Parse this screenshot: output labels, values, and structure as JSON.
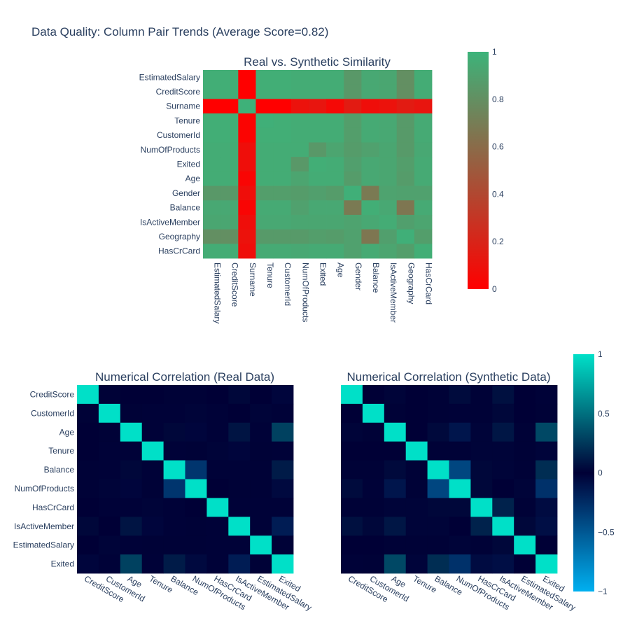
{
  "title": "Data Quality: Column Pair Trends (Average Score=0.82)",
  "chart_data": [
    {
      "type": "heatmap",
      "title": "Real vs. Synthetic Similarity",
      "x_labels": [
        "EstimatedSalary",
        "CreditScore",
        "Surname",
        "Tenure",
        "CustomerId",
        "NumOfProducts",
        "Exited",
        "Age",
        "Gender",
        "Balance",
        "IsActiveMember",
        "Geography",
        "HasCrCard"
      ],
      "y_labels": [
        "EstimatedSalary",
        "CreditScore",
        "Surname",
        "Tenure",
        "CustomerId",
        "NumOfProducts",
        "Exited",
        "Age",
        "Gender",
        "Balance",
        "IsActiveMember",
        "Geography",
        "HasCrCard"
      ],
      "z": [
        [
          0.97,
          0.97,
          0.0,
          0.97,
          0.97,
          0.96,
          0.96,
          0.96,
          0.85,
          0.94,
          0.93,
          0.8,
          0.96
        ],
        [
          0.97,
          0.97,
          0.0,
          0.97,
          0.97,
          0.96,
          0.96,
          0.96,
          0.85,
          0.94,
          0.93,
          0.8,
          0.96
        ],
        [
          0.0,
          0.0,
          0.99,
          0.0,
          0.0,
          0.1,
          0.12,
          0.05,
          0.15,
          0.08,
          0.1,
          0.15,
          0.12
        ],
        [
          0.97,
          0.97,
          0.02,
          0.98,
          0.97,
          0.96,
          0.96,
          0.96,
          0.88,
          0.95,
          0.94,
          0.86,
          0.95
        ],
        [
          0.97,
          0.97,
          0.02,
          0.97,
          0.97,
          0.96,
          0.96,
          0.96,
          0.88,
          0.95,
          0.94,
          0.86,
          0.95
        ],
        [
          0.96,
          0.96,
          0.08,
          0.96,
          0.96,
          0.96,
          0.85,
          0.92,
          0.87,
          0.9,
          0.93,
          0.86,
          0.94
        ],
        [
          0.96,
          0.96,
          0.08,
          0.96,
          0.96,
          0.85,
          0.97,
          0.96,
          0.89,
          0.94,
          0.93,
          0.88,
          0.95
        ],
        [
          0.96,
          0.96,
          0.03,
          0.96,
          0.96,
          0.92,
          0.96,
          0.96,
          0.87,
          0.94,
          0.93,
          0.87,
          0.95
        ],
        [
          0.85,
          0.85,
          0.08,
          0.88,
          0.88,
          0.87,
          0.89,
          0.87,
          0.98,
          0.68,
          0.91,
          0.9,
          0.9
        ],
        [
          0.94,
          0.94,
          0.03,
          0.95,
          0.95,
          0.9,
          0.94,
          0.94,
          0.68,
          0.97,
          0.94,
          0.66,
          0.95
        ],
        [
          0.93,
          0.93,
          0.08,
          0.94,
          0.94,
          0.93,
          0.93,
          0.93,
          0.91,
          0.94,
          0.96,
          0.89,
          0.92
        ],
        [
          0.8,
          0.8,
          0.1,
          0.86,
          0.86,
          0.86,
          0.88,
          0.87,
          0.9,
          0.66,
          0.89,
          0.98,
          0.88
        ],
        [
          0.96,
          0.96,
          0.08,
          0.95,
          0.95,
          0.94,
          0.95,
          0.95,
          0.9,
          0.95,
          0.92,
          0.88,
          0.97
        ]
      ],
      "zlim": [
        0,
        1
      ],
      "colorscale": [
        "#ff0000",
        "#3cb37a"
      ],
      "colorbar_ticks": [
        0,
        0.2,
        0.4,
        0.6,
        0.8,
        1
      ]
    },
    {
      "type": "heatmap",
      "title": "Numerical Correlation (Real Data)",
      "x_labels": [
        "CreditScore",
        "CustomerId",
        "Age",
        "Tenure",
        "Balance",
        "NumOfProducts",
        "HasCrCard",
        "IsActiveMember",
        "EstimatedSalary",
        "Exited"
      ],
      "y_labels": [
        "CreditScore",
        "CustomerId",
        "Age",
        "Tenure",
        "Balance",
        "NumOfProducts",
        "HasCrCard",
        "IsActiveMember",
        "EstimatedSalary",
        "Exited"
      ],
      "z": [
        [
          1.0,
          0.01,
          0.0,
          0.0,
          0.01,
          0.01,
          0.0,
          0.03,
          0.0,
          -0.03
        ],
        [
          0.01,
          1.0,
          0.01,
          -0.01,
          -0.01,
          0.02,
          -0.01,
          0.0,
          0.02,
          -0.01
        ],
        [
          0.0,
          0.01,
          1.0,
          -0.01,
          0.03,
          -0.03,
          -0.01,
          0.09,
          -0.01,
          0.29
        ],
        [
          0.0,
          -0.01,
          -0.01,
          1.0,
          -0.01,
          0.01,
          0.02,
          -0.03,
          0.01,
          -0.01
        ],
        [
          0.01,
          -0.01,
          0.03,
          -0.01,
          1.0,
          -0.3,
          -0.01,
          -0.01,
          0.01,
          0.12
        ],
        [
          0.01,
          0.02,
          -0.03,
          0.01,
          -0.3,
          1.0,
          0.0,
          0.01,
          0.01,
          -0.05
        ],
        [
          0.0,
          -0.01,
          -0.01,
          0.02,
          -0.01,
          0.0,
          1.0,
          -0.01,
          -0.01,
          -0.01
        ],
        [
          0.03,
          0.0,
          0.09,
          -0.03,
          -0.01,
          0.01,
          -0.01,
          1.0,
          -0.01,
          -0.16
        ],
        [
          0.0,
          0.02,
          -0.01,
          0.01,
          0.01,
          0.01,
          -0.01,
          -0.01,
          1.0,
          0.01
        ],
        [
          -0.03,
          -0.01,
          0.29,
          -0.01,
          0.12,
          -0.05,
          -0.01,
          -0.16,
          0.01,
          1.0
        ]
      ],
      "zlim": [
        -1,
        1
      ]
    },
    {
      "type": "heatmap",
      "title": "Numerical Correlation (Synthetic Data)",
      "x_labels": [
        "CreditScore",
        "CustomerId",
        "Age",
        "Tenure",
        "Balance",
        "NumOfProducts",
        "HasCrCard",
        "IsActiveMember",
        "EstimatedSalary",
        "Exited"
      ],
      "y_labels": [
        "CreditScore",
        "CustomerId",
        "Age",
        "Tenure",
        "Balance",
        "NumOfProducts",
        "HasCrCard",
        "IsActiveMember",
        "EstimatedSalary",
        "Exited"
      ],
      "z": [
        [
          1.0,
          0.0,
          0.02,
          0.0,
          0.01,
          0.05,
          0.01,
          0.07,
          0.0,
          -0.01
        ],
        [
          0.0,
          1.0,
          0.01,
          0.0,
          0.01,
          -0.01,
          0.01,
          0.03,
          0.0,
          0.01
        ],
        [
          0.02,
          0.01,
          1.0,
          0.0,
          0.04,
          -0.12,
          0.02,
          0.1,
          0.01,
          0.32
        ],
        [
          0.0,
          0.0,
          0.0,
          1.0,
          0.01,
          0.01,
          0.02,
          0.02,
          0.01,
          -0.02
        ],
        [
          0.01,
          0.01,
          0.04,
          0.01,
          1.0,
          -0.4,
          0.03,
          0.02,
          0.01,
          0.2
        ],
        [
          0.05,
          -0.01,
          -0.12,
          0.01,
          -0.4,
          1.0,
          0.03,
          0.0,
          0.02,
          -0.28
        ],
        [
          0.01,
          0.01,
          0.02,
          0.02,
          0.03,
          0.03,
          1.0,
          0.15,
          0.01,
          -0.06
        ],
        [
          0.07,
          0.03,
          0.1,
          0.02,
          0.02,
          0.0,
          0.15,
          1.0,
          0.03,
          -0.08
        ],
        [
          0.0,
          0.0,
          0.01,
          0.01,
          0.01,
          0.02,
          0.01,
          0.03,
          1.0,
          0.0
        ],
        [
          -0.01,
          0.01,
          0.32,
          -0.02,
          0.2,
          -0.28,
          -0.06,
          -0.08,
          0.0,
          1.0
        ]
      ],
      "zlim": [
        -1,
        1
      ],
      "colorscale": [
        "#00b0f0",
        "#000036",
        "#00e0c8"
      ],
      "colorbar_ticks": [
        1,
        0.5,
        0,
        -0.5,
        -1
      ],
      "colorbar_tick_labels": [
        "1",
        "0.5",
        "0",
        "−0.5",
        "−1"
      ]
    }
  ]
}
